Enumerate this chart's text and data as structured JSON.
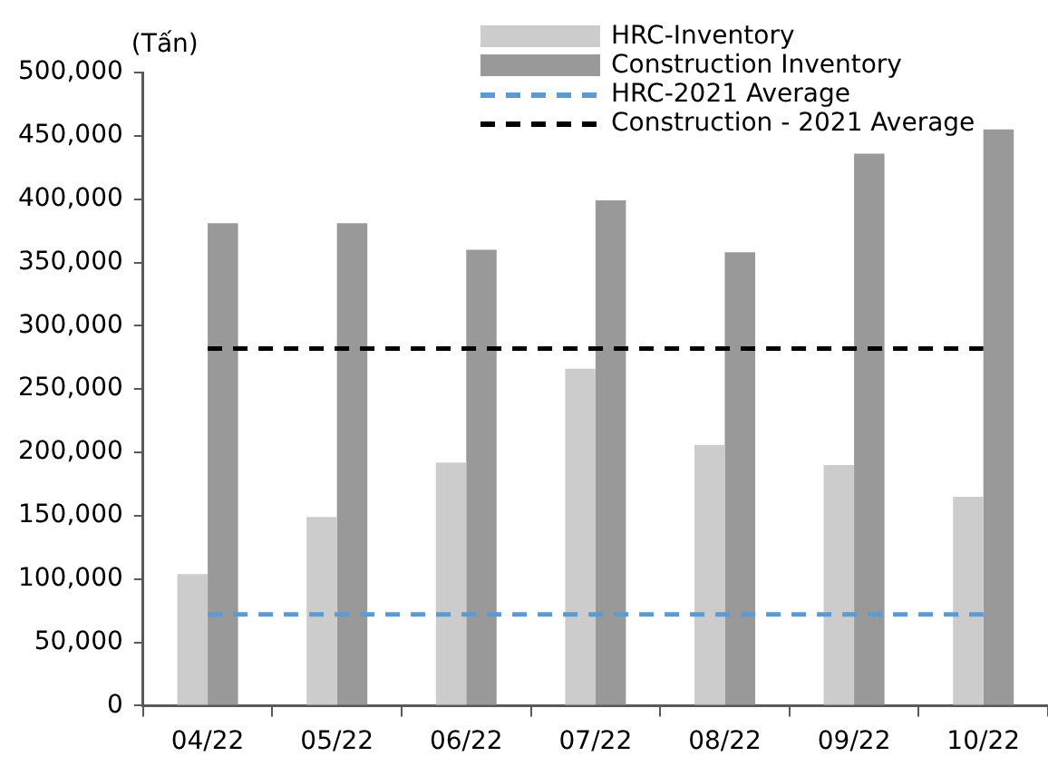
{
  "chart_data": {
    "type": "bar",
    "ylabel": "(Tấn)",
    "categories": [
      "04/22",
      "05/22",
      "06/22",
      "07/22",
      "08/22",
      "09/22",
      "10/22"
    ],
    "series": [
      {
        "name": "HRC-Inventory",
        "color": "#cccccc",
        "values": [
          104000,
          149000,
          192000,
          266000,
          206000,
          190000,
          165000
        ]
      },
      {
        "name": "Construction Inventory",
        "color": "#999999",
        "values": [
          381000,
          381000,
          360000,
          399000,
          358000,
          436000,
          455000
        ]
      },
      {
        "type": "line",
        "name": "HRC-2021 Average",
        "color": "#5b9bd5",
        "values": [
          72000,
          72000,
          72000,
          72000,
          72000,
          72000,
          72000
        ]
      },
      {
        "type": "line",
        "name": "Construction - 2021 Average",
        "color": "#000000",
        "values": [
          282000,
          282000,
          282000,
          282000,
          282000,
          282000,
          282000
        ]
      }
    ],
    "ylim": [
      0,
      500000
    ],
    "yticks": [
      {
        "value": 0,
        "label": "0"
      },
      {
        "value": 50000,
        "label": "50,000"
      },
      {
        "value": 100000,
        "label": "100,000"
      },
      {
        "value": 150000,
        "label": "150,000"
      },
      {
        "value": 200000,
        "label": "200,000"
      },
      {
        "value": 250000,
        "label": "250,000"
      },
      {
        "value": 300000,
        "label": "300,000"
      },
      {
        "value": 350000,
        "label": "350,000"
      },
      {
        "value": 400000,
        "label": "400,000"
      },
      {
        "value": 450000,
        "label": "450,000"
      },
      {
        "value": 500000,
        "label": "500,000"
      }
    ],
    "grid": false,
    "legend": "top right",
    "line_style": "dashed",
    "marker": "none"
  }
}
